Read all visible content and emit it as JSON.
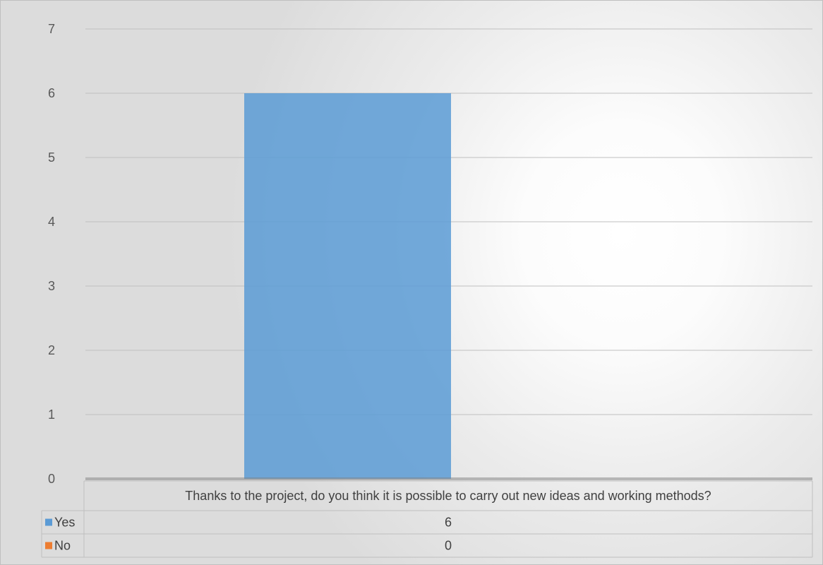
{
  "chart_data": {
    "type": "bar",
    "categories": [
      "Thanks to the project, do you think it is possible to carry out new ideas and working methods?"
    ],
    "series": [
      {
        "name": "Yes",
        "values": [
          6
        ],
        "color": "#5B9BD5"
      },
      {
        "name": "No",
        "values": [
          0
        ],
        "color": "#ED7D31"
      }
    ],
    "ylim": [
      0,
      7
    ],
    "yticks": [
      0,
      1,
      2,
      3,
      4,
      5,
      6,
      7
    ],
    "grid": true,
    "legend": "data-table",
    "title": "",
    "xlabel": "",
    "ylabel": ""
  }
}
